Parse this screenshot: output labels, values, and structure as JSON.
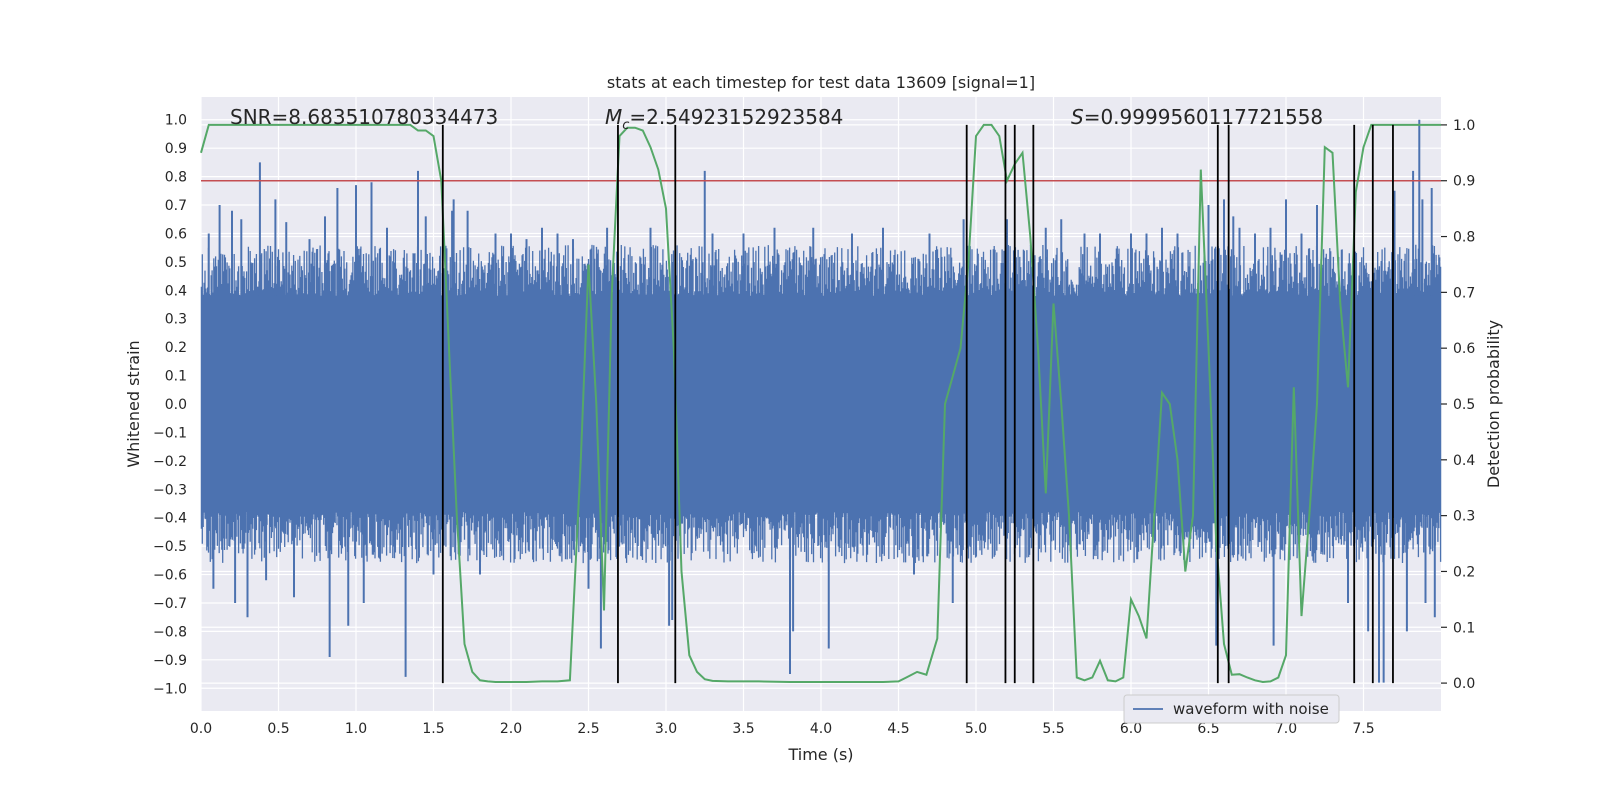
{
  "chart_data": {
    "type": "line",
    "title": "stats at each timestep for test data 13609 [signal=1]",
    "xlabel": "Time (s)",
    "ylabel": "Whitened strain",
    "y2label": "Detection probability",
    "xlim": [
      0.0,
      8.0
    ],
    "ylim": [
      -1.08,
      1.08
    ],
    "y2lim": [
      -0.05,
      1.05
    ],
    "xticks": [
      0.0,
      0.5,
      1.0,
      1.5,
      2.0,
      2.5,
      3.0,
      3.5,
      4.0,
      4.5,
      5.0,
      5.5,
      6.0,
      6.5,
      7.0,
      7.5
    ],
    "xtick_labels": [
      "0.0",
      "0.5",
      "1.0",
      "1.5",
      "2.0",
      "2.5",
      "3.0",
      "3.5",
      "4.0",
      "4.5",
      "5.0",
      "5.5",
      "6.0",
      "6.5",
      "7.0",
      "7.5"
    ],
    "yticks": [
      -1.0,
      -0.9,
      -0.8,
      -0.7,
      -0.6,
      -0.5,
      -0.4,
      -0.3,
      -0.2,
      -0.1,
      0.0,
      0.1,
      0.2,
      0.3,
      0.4,
      0.5,
      0.6,
      0.7,
      0.8,
      0.9,
      1.0
    ],
    "ytick_labels": [
      "−1.0",
      "−0.9",
      "−0.8",
      "−0.7",
      "−0.6",
      "−0.5",
      "−0.4",
      "−0.3",
      "−0.2",
      "−0.1",
      "0.0",
      "0.1",
      "0.2",
      "0.3",
      "0.4",
      "0.5",
      "0.6",
      "0.7",
      "0.8",
      "0.9",
      "1.0"
    ],
    "y2ticks": [
      0.0,
      0.1,
      0.2,
      0.3,
      0.4,
      0.5,
      0.6,
      0.7,
      0.8,
      0.9,
      1.0
    ],
    "y2tick_labels": [
      "0.0",
      "0.1",
      "0.2",
      "0.3",
      "0.4",
      "0.5",
      "0.6",
      "0.7",
      "0.8",
      "0.9",
      "1.0"
    ],
    "annotations": {
      "snr": "SNR=8.683510780334473",
      "mc_symbol": "M",
      "mc_subscript": "c",
      "mc_value": "=2.54923152923584",
      "s_symbol": "S",
      "s_value": "=0.9999560117721558"
    },
    "threshold": {
      "value": 0.9,
      "axis": "y2",
      "color": "#c44e52"
    },
    "waveform": {
      "name": "waveform with noise",
      "color": "#4c72b0",
      "typical_amplitude": 0.38,
      "spikes": [
        [
          0.05,
          0.6
        ],
        [
          0.08,
          -0.65
        ],
        [
          0.12,
          0.7
        ],
        [
          0.2,
          0.68
        ],
        [
          0.22,
          -0.7
        ],
        [
          0.26,
          0.65
        ],
        [
          0.3,
          -0.75
        ],
        [
          0.38,
          0.85
        ],
        [
          0.42,
          -0.62
        ],
        [
          0.48,
          0.72
        ],
        [
          0.55,
          0.64
        ],
        [
          0.6,
          -0.68
        ],
        [
          0.7,
          0.58
        ],
        [
          0.8,
          0.66
        ],
        [
          0.83,
          -0.89
        ],
        [
          0.88,
          0.76
        ],
        [
          0.95,
          -0.78
        ],
        [
          1.0,
          0.77
        ],
        [
          1.05,
          -0.7
        ],
        [
          1.1,
          0.78
        ],
        [
          1.2,
          0.62
        ],
        [
          1.32,
          -0.96
        ],
        [
          1.4,
          0.82
        ],
        [
          1.45,
          0.66
        ],
        [
          1.5,
          -0.6
        ],
        [
          1.62,
          0.68
        ],
        [
          1.63,
          0.72
        ],
        [
          1.72,
          0.68
        ],
        [
          1.8,
          -0.6
        ],
        [
          1.9,
          0.6
        ],
        [
          2.0,
          0.6
        ],
        [
          2.1,
          0.58
        ],
        [
          2.2,
          0.62
        ],
        [
          2.3,
          0.6
        ],
        [
          2.4,
          0.58
        ],
        [
          2.5,
          -0.65
        ],
        [
          2.58,
          -0.86
        ],
        [
          2.62,
          0.62
        ],
        [
          2.9,
          0.62
        ],
        [
          3.02,
          -0.78
        ],
        [
          3.04,
          -0.76
        ],
        [
          3.25,
          0.82
        ],
        [
          3.3,
          0.6
        ],
        [
          3.5,
          0.6
        ],
        [
          3.7,
          0.62
        ],
        [
          3.8,
          -0.95
        ],
        [
          3.82,
          -0.8
        ],
        [
          3.95,
          0.62
        ],
        [
          4.05,
          -0.86
        ],
        [
          4.2,
          0.6
        ],
        [
          4.4,
          0.62
        ],
        [
          4.6,
          -0.6
        ],
        [
          4.7,
          0.6
        ],
        [
          4.85,
          -0.7
        ],
        [
          4.92,
          0.65
        ],
        [
          5.2,
          0.65
        ],
        [
          5.45,
          0.62
        ],
        [
          5.55,
          0.65
        ],
        [
          5.7,
          0.6
        ],
        [
          5.8,
          0.6
        ],
        [
          6.0,
          0.6
        ],
        [
          6.1,
          0.6
        ],
        [
          6.2,
          0.62
        ],
        [
          6.3,
          0.6
        ],
        [
          6.5,
          0.7
        ],
        [
          6.55,
          -0.85
        ],
        [
          6.6,
          0.72
        ],
        [
          6.66,
          0.66
        ],
        [
          6.7,
          0.62
        ],
        [
          6.8,
          0.6
        ],
        [
          6.9,
          0.62
        ],
        [
          6.92,
          -0.85
        ],
        [
          7.0,
          0.72
        ],
        [
          7.1,
          0.6
        ],
        [
          7.2,
          0.7
        ],
        [
          7.4,
          -0.7
        ],
        [
          7.53,
          -0.8
        ],
        [
          7.6,
          -0.98
        ],
        [
          7.63,
          -0.98
        ],
        [
          7.7,
          0.75
        ],
        [
          7.78,
          -0.8
        ],
        [
          7.82,
          0.82
        ],
        [
          7.86,
          1.0
        ],
        [
          7.88,
          0.72
        ],
        [
          7.9,
          -0.7
        ],
        [
          7.94,
          0.76
        ],
        [
          7.96,
          -0.75
        ]
      ]
    },
    "probability": {
      "color": "#55a868",
      "x": [
        0.0,
        0.05,
        0.1,
        0.3,
        0.5,
        0.8,
        1.0,
        1.2,
        1.35,
        1.4,
        1.45,
        1.5,
        1.55,
        1.6,
        1.65,
        1.7,
        1.75,
        1.8,
        1.85,
        1.9,
        2.0,
        2.1,
        2.2,
        2.3,
        2.38,
        2.45,
        2.5,
        2.55,
        2.6,
        2.65,
        2.7,
        2.75,
        2.8,
        2.85,
        2.9,
        2.95,
        3.0,
        3.05,
        3.1,
        3.15,
        3.2,
        3.25,
        3.3,
        3.4,
        3.6,
        3.8,
        4.0,
        4.2,
        4.4,
        4.5,
        4.55,
        4.62,
        4.68,
        4.75,
        4.8,
        4.85,
        4.9,
        4.95,
        5.0,
        5.05,
        5.1,
        5.15,
        5.2,
        5.25,
        5.3,
        5.35,
        5.4,
        5.45,
        5.5,
        5.55,
        5.6,
        5.65,
        5.7,
        5.75,
        5.8,
        5.85,
        5.9,
        5.95,
        6.0,
        6.05,
        6.1,
        6.15,
        6.2,
        6.25,
        6.3,
        6.35,
        6.4,
        6.45,
        6.5,
        6.55,
        6.6,
        6.65,
        6.7,
        6.75,
        6.8,
        6.85,
        6.9,
        6.95,
        7.0,
        7.05,
        7.1,
        7.15,
        7.2,
        7.25,
        7.3,
        7.35,
        7.4,
        7.45,
        7.5,
        7.55,
        7.6,
        7.65,
        7.7,
        7.75,
        7.8,
        7.85,
        7.9,
        7.95,
        8.0
      ],
      "y": [
        0.95,
        1.0,
        1.0,
        1.0,
        1.0,
        1.0,
        1.0,
        1.0,
        1.0,
        0.99,
        0.99,
        0.98,
        0.9,
        0.6,
        0.3,
        0.07,
        0.02,
        0.005,
        0.003,
        0.002,
        0.002,
        0.002,
        0.003,
        0.003,
        0.005,
        0.4,
        0.75,
        0.5,
        0.13,
        0.7,
        0.98,
        0.995,
        0.995,
        0.99,
        0.96,
        0.92,
        0.85,
        0.6,
        0.2,
        0.05,
        0.02,
        0.007,
        0.004,
        0.003,
        0.003,
        0.002,
        0.002,
        0.002,
        0.002,
        0.003,
        0.01,
        0.02,
        0.015,
        0.08,
        0.5,
        0.55,
        0.6,
        0.75,
        0.98,
        1.0,
        1.0,
        0.98,
        0.9,
        0.93,
        0.95,
        0.8,
        0.6,
        0.34,
        0.68,
        0.5,
        0.3,
        0.01,
        0.005,
        0.01,
        0.04,
        0.005,
        0.003,
        0.01,
        0.15,
        0.12,
        0.08,
        0.3,
        0.52,
        0.5,
        0.4,
        0.2,
        0.3,
        0.92,
        0.6,
        0.25,
        0.07,
        0.015,
        0.016,
        0.01,
        0.005,
        0.002,
        0.003,
        0.01,
        0.05,
        0.53,
        0.12,
        0.3,
        0.5,
        0.96,
        0.95,
        0.68,
        0.53,
        0.88,
        0.96,
        1.0,
        1.0,
        1.0,
        1.0,
        1.0,
        1.0,
        1.0,
        1.0,
        1.0,
        1.0
      ]
    },
    "vlines": [
      1.56,
      2.69,
      3.06,
      4.94,
      5.19,
      5.25,
      5.37,
      6.56,
      6.63,
      7.44,
      7.56,
      7.69
    ],
    "legend": {
      "label": "waveform with noise",
      "location": "lower-right"
    }
  }
}
